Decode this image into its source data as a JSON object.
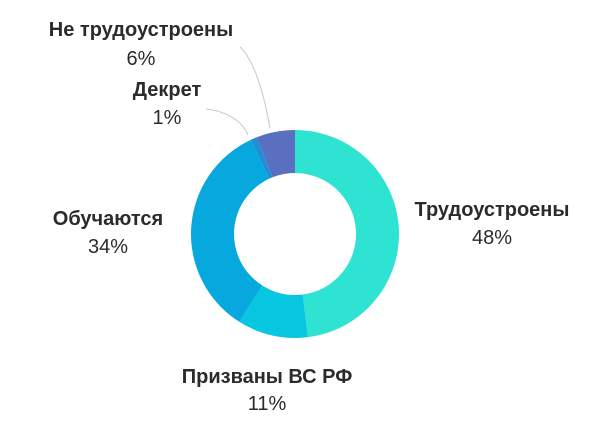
{
  "chart_data": {
    "type": "pie",
    "donut": true,
    "title": "",
    "slices": [
      {
        "label": "Трудоустроены",
        "value": 48,
        "value_label": "48%",
        "color": "#2fe3d3"
      },
      {
        "label": "Призваны ВС РФ",
        "value": 11,
        "value_label": "11%",
        "color": "#07c6e0"
      },
      {
        "label": "Обучаются",
        "value": 34,
        "value_label": "34%",
        "color": "#06a8de"
      },
      {
        "label": "Декрет",
        "value": 1,
        "value_label": "1%",
        "color": "#1e90d8"
      },
      {
        "label": "Не трудоустроены",
        "value": 6,
        "value_label": "6%",
        "color": "#5b6fc0"
      }
    ],
    "legend": "none"
  }
}
